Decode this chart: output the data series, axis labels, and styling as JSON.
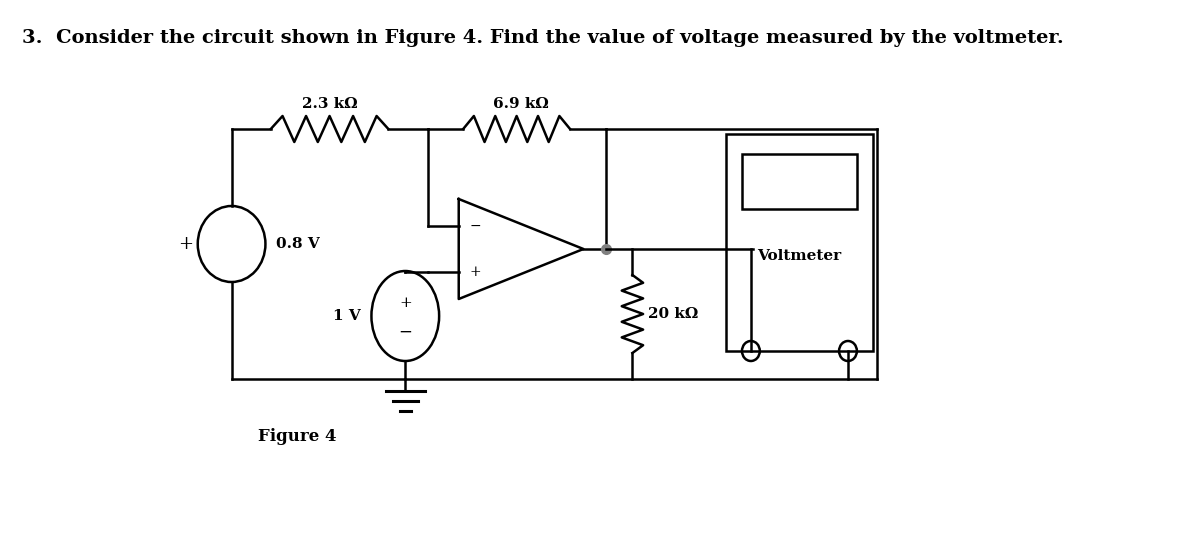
{
  "title": "3.  Consider the circuit shown in Figure 4. Find the value of voltage measured by the voltmeter.",
  "figure_caption": "Figure 4",
  "bg_color": "#ffffff",
  "title_fontsize": 14,
  "label_23k": "2.3 kΩ",
  "label_69k": "6.9 kΩ",
  "label_20k": "20 kΩ",
  "label_08v": "0.8 V",
  "label_1v": "1 V",
  "label_voltmeter": "Voltmeter"
}
